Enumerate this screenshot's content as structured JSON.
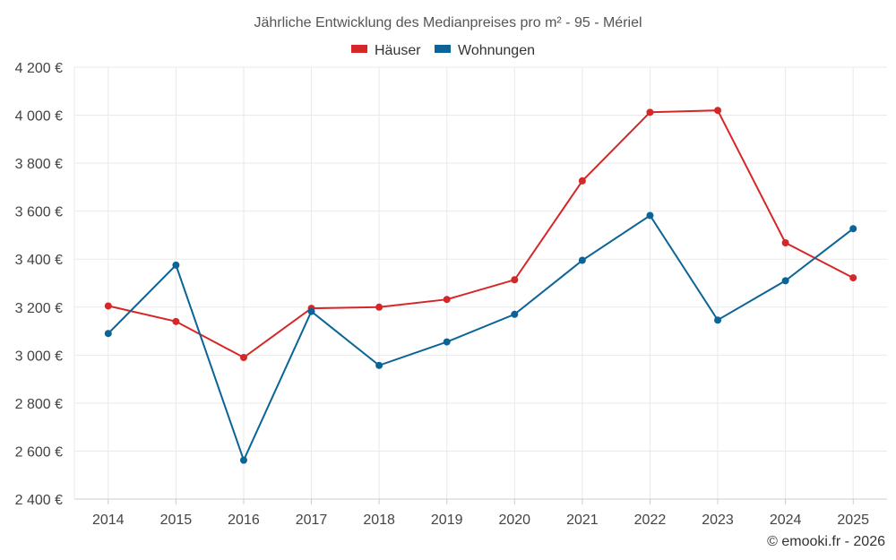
{
  "chart_data": {
    "type": "line",
    "title": "Jährliche Entwicklung des Medianpreises pro m² - 95 - Mériel",
    "categories": [
      "2014",
      "2015",
      "2016",
      "2017",
      "2018",
      "2019",
      "2020",
      "2021",
      "2022",
      "2023",
      "2024",
      "2025"
    ],
    "series": [
      {
        "name": "Häuser",
        "color": "#d62728",
        "values": [
          3205,
          3140,
          2990,
          3195,
          3200,
          3232,
          3314,
          3726,
          4012,
          4020,
          3468,
          3322
        ]
      },
      {
        "name": "Wohnungen",
        "color": "#0b6497",
        "values": [
          3090,
          3375,
          2562,
          3182,
          2957,
          3055,
          3170,
          3395,
          3582,
          3146,
          3310,
          3527
        ]
      }
    ],
    "ylim": [
      2400,
      4200
    ],
    "yticks": [
      2400,
      2600,
      2800,
      3000,
      3200,
      3400,
      3600,
      3800,
      4000,
      4200
    ],
    "ytick_labels": [
      "2 400 €",
      "2 600 €",
      "2 800 €",
      "3 000 €",
      "3 200 €",
      "3 400 €",
      "3 600 €",
      "3 800 €",
      "4 000 €",
      "4 200 €"
    ],
    "grid": true,
    "legend_position": "top-center",
    "xlabel": "",
    "ylabel": ""
  },
  "credit": "© emooki.fr - 2026"
}
